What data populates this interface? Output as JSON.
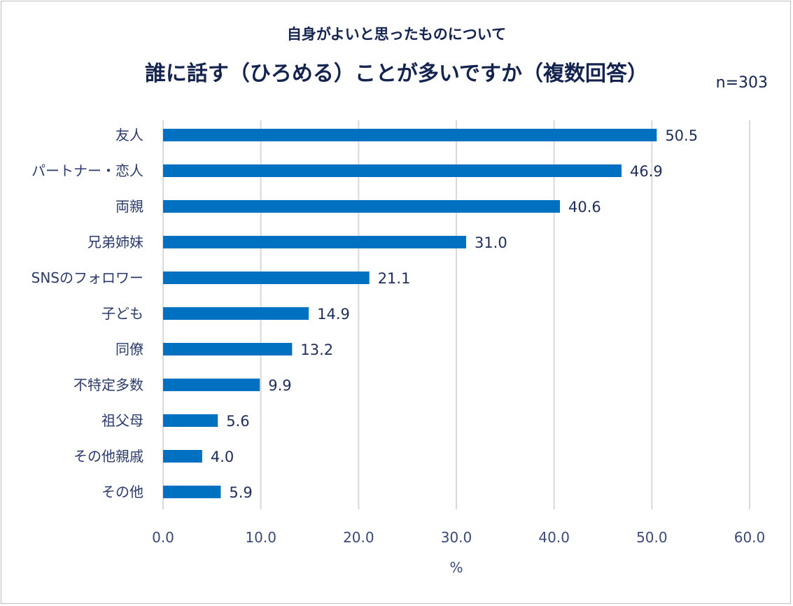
{
  "chart_data": {
    "type": "bar",
    "orientation": "horizontal",
    "subtitle": "自身がよいと思ったものについて",
    "title": "誰に話す（ひろめる）ことが多いですか（複数回答）",
    "note": "n=303",
    "categories": [
      "友人",
      "パートナー・恋人",
      "両親",
      "兄弟姉妹",
      "SNSのフォロワー",
      "子ども",
      "同僚",
      "不特定多数",
      "祖父母",
      "その他親戚",
      "その他"
    ],
    "values": [
      50.5,
      46.9,
      40.6,
      31.0,
      21.1,
      14.9,
      13.2,
      9.9,
      5.6,
      4.0,
      5.9
    ],
    "value_labels": [
      "50.5",
      "46.9",
      "40.6",
      "31.0",
      "21.1",
      "14.9",
      "13.2",
      "9.9",
      "5.6",
      "4.0",
      "5.9"
    ],
    "xlabel": "%",
    "xlim": [
      0,
      60
    ],
    "xticks": [
      "0.0",
      "10.0",
      "20.0",
      "30.0",
      "40.0",
      "50.0",
      "60.0"
    ],
    "grid": "vertical",
    "bar_color": "#0070c0"
  }
}
